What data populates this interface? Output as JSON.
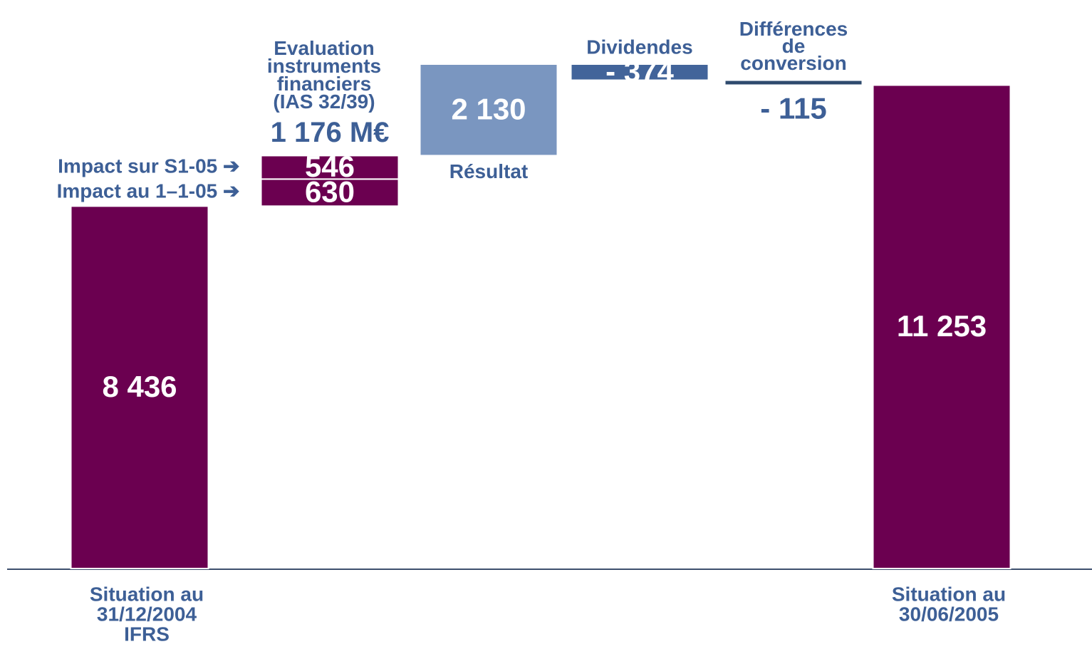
{
  "chart_data": {
    "type": "waterfall",
    "categories": [
      [
        "Situation au",
        "31/12/2004",
        "IFRS"
      ],
      [
        "Impact au 1–1-05 ➔"
      ],
      [
        "Impact sur S1-05 ➔"
      ],
      [
        "Résultat"
      ],
      [
        "Dividendes"
      ],
      [
        "Différences",
        "de",
        "conversion"
      ],
      [
        "Situation au",
        "30/06/2005"
      ]
    ],
    "values": [
      8436,
      630,
      546,
      2130,
      -374,
      -115,
      11253
    ],
    "value_labels": [
      "8 436",
      "630",
      "546",
      "2 130",
      "- 374",
      "- 115",
      "11 253"
    ],
    "totals": [
      true,
      false,
      false,
      false,
      false,
      false,
      true
    ],
    "colors": [
      "#6b0050",
      "#6b0050",
      "#6b0050",
      "#7a96c0",
      "#42649a",
      "#2e4a6e",
      "#6b0050"
    ],
    "annotation": {
      "lines": [
        "Evaluation",
        "instruments",
        "financiers",
        "(IAS 32/39)"
      ],
      "value_label": "1 176 M€"
    }
  }
}
